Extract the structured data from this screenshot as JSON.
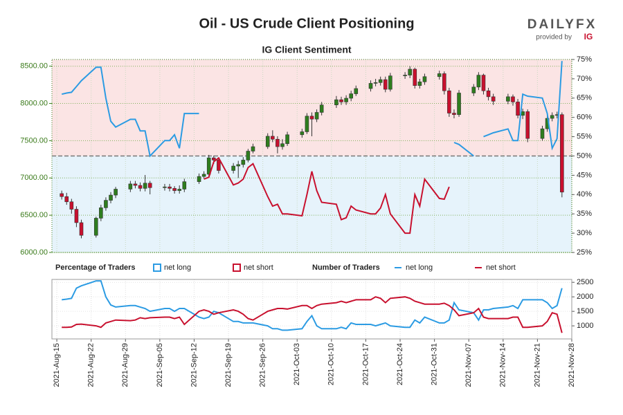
{
  "title": "Oil - US Crude Client Positioning",
  "logo": {
    "brand": "DAILYFX",
    "tagline": "provided by",
    "provider": "IG"
  },
  "chart_data": [
    {
      "type": "candlestick",
      "title": "IG Client Sentiment",
      "legend_title": "Percentage of Traders",
      "up_color": "#2e7d1e",
      "down_color": "#c8102e",
      "xlim": [
        "2021-08-14",
        "2021-11-28"
      ],
      "ylim": [
        6000,
        8590
      ],
      "yticks": [
        {
          "value": 6000,
          "label": "6000.00"
        },
        {
          "value": 6500,
          "label": "6500.00"
        },
        {
          "value": 7000,
          "label": "7000.00"
        },
        {
          "value": 7500,
          "label": "7500.00"
        },
        {
          "value": 8000,
          "label": "8000.00"
        },
        {
          "value": 8500,
          "label": "8500.00"
        }
      ],
      "y2lim": [
        25,
        75
      ],
      "y2ticks": [
        {
          "value": 25,
          "label": "25%"
        },
        {
          "value": 30,
          "label": "30%"
        },
        {
          "value": 35,
          "label": "35%"
        },
        {
          "value": 40,
          "label": "40%"
        },
        {
          "value": 45,
          "label": "45%"
        },
        {
          "value": 50,
          "label": "50%"
        },
        {
          "value": 55,
          "label": "55%"
        },
        {
          "value": 60,
          "label": "60%"
        },
        {
          "value": 65,
          "label": "65%"
        },
        {
          "value": 70,
          "label": "70%"
        },
        {
          "value": 75,
          "label": "75%"
        }
      ],
      "x": [
        "2021-08-16",
        "2021-08-17",
        "2021-08-18",
        "2021-08-19",
        "2021-08-20",
        "2021-08-23",
        "2021-08-24",
        "2021-08-25",
        "2021-08-26",
        "2021-08-27",
        "2021-08-30",
        "2021-08-31",
        "2021-09-01",
        "2021-09-02",
        "2021-09-03",
        "2021-09-06",
        "2021-09-07",
        "2021-09-08",
        "2021-09-09",
        "2021-09-10",
        "2021-09-13",
        "2021-09-14",
        "2021-09-15",
        "2021-09-16",
        "2021-09-17",
        "2021-09-20",
        "2021-09-21",
        "2021-09-22",
        "2021-09-23",
        "2021-09-24",
        "2021-09-27",
        "2021-09-28",
        "2021-09-29",
        "2021-09-30",
        "2021-10-01",
        "2021-10-04",
        "2021-10-05",
        "2021-10-06",
        "2021-10-07",
        "2021-10-08",
        "2021-10-11",
        "2021-10-12",
        "2021-10-13",
        "2021-10-14",
        "2021-10-15",
        "2021-10-18",
        "2021-10-19",
        "2021-10-20",
        "2021-10-21",
        "2021-10-22",
        "2021-10-25",
        "2021-10-26",
        "2021-10-27",
        "2021-10-28",
        "2021-10-29",
        "2021-11-01",
        "2021-11-02",
        "2021-11-03",
        "2021-11-04",
        "2021-11-05",
        "2021-11-08",
        "2021-11-09",
        "2021-11-10",
        "2021-11-11",
        "2021-11-12",
        "2021-11-15",
        "2021-11-16",
        "2021-11-17",
        "2021-11-18",
        "2021-11-19",
        "2021-11-22",
        "2021-11-23",
        "2021-11-24",
        "2021-11-25",
        "2021-11-26"
      ],
      "open": [
        6790,
        6750,
        6680,
        6580,
        6400,
        6230,
        6460,
        6600,
        6700,
        6770,
        6850,
        6920,
        6900,
        6860,
        6930,
        6870,
        6880,
        6860,
        6830,
        6850,
        6950,
        7020,
        7050,
        7270,
        7240,
        7100,
        7160,
        7180,
        7240,
        7360,
        7420,
        7560,
        7520,
        7420,
        7460,
        7580,
        7620,
        7830,
        7790,
        7880,
        7980,
        8050,
        8020,
        8070,
        8130,
        8200,
        8270,
        8280,
        8320,
        8190,
        8370,
        8380,
        8460,
        8240,
        8290,
        8360,
        8400,
        8170,
        7870,
        7850,
        8140,
        8220,
        8380,
        8170,
        8090,
        8030,
        8090,
        8020,
        7840,
        7890,
        7530,
        7660,
        7800,
        7840,
        7850
      ],
      "high": [
        6830,
        6800,
        6720,
        6620,
        6440,
        6480,
        6640,
        6740,
        6810,
        6880,
        6960,
        6960,
        6940,
        7040,
        6960,
        6920,
        6920,
        6890,
        6900,
        6990,
        7060,
        7090,
        7310,
        7300,
        7270,
        7200,
        7230,
        7280,
        7390,
        7460,
        7600,
        7640,
        7560,
        7520,
        7620,
        7660,
        7870,
        7880,
        7920,
        8020,
        8100,
        8090,
        8110,
        8170,
        8240,
        8310,
        8330,
        8360,
        8360,
        8410,
        8420,
        8500,
        8480,
        8330,
        8400,
        8440,
        8430,
        8210,
        7920,
        8180,
        8260,
        8420,
        8400,
        8210,
        8130,
        8130,
        8120,
        8060,
        7930,
        7920,
        7700,
        7840,
        7880,
        7890,
        7880
      ],
      "low": [
        6710,
        6640,
        6520,
        6340,
        6190,
        6200,
        6420,
        6560,
        6660,
        6730,
        6810,
        6860,
        6820,
        6820,
        6780,
        6830,
        6820,
        6790,
        6790,
        6810,
        6920,
        6990,
        7020,
        7190,
        7060,
        7060,
        7000,
        7140,
        7210,
        7330,
        7390,
        7480,
        7330,
        7380,
        7430,
        7540,
        7590,
        7560,
        7750,
        7840,
        7940,
        7980,
        7980,
        8030,
        8100,
        8160,
        8230,
        8240,
        8150,
        8160,
        8330,
        8340,
        8200,
        8200,
        8250,
        8320,
        8120,
        7820,
        7800,
        7820,
        8100,
        8180,
        8120,
        8040,
        7980,
        7990,
        7970,
        7800,
        7790,
        7480,
        7500,
        7620,
        7760,
        7800,
        6740
      ],
      "close": [
        6750,
        6680,
        6580,
        6400,
        6230,
        6460,
        6600,
        6700,
        6770,
        6850,
        6920,
        6900,
        6860,
        6930,
        6870,
        6880,
        6860,
        6830,
        6850,
        6950,
        7020,
        7050,
        7270,
        7240,
        7100,
        7160,
        7180,
        7240,
        7360,
        7420,
        7560,
        7520,
        7420,
        7460,
        7580,
        7620,
        7830,
        7790,
        7880,
        7980,
        8050,
        8020,
        8070,
        8130,
        8200,
        8270,
        8280,
        8320,
        8190,
        8370,
        8380,
        8460,
        8240,
        8290,
        8360,
        8400,
        8170,
        7870,
        7850,
        8140,
        8220,
        8380,
        8170,
        8090,
        8030,
        8090,
        8020,
        7840,
        7890,
        7530,
        7660,
        7800,
        7840,
        7850,
        6810
      ],
      "series": [
        {
          "name": "net long",
          "color": "#2b9be3",
          "axis": "y2",
          "values": [
            66,
            66.3,
            66.5,
            68,
            69.5,
            73,
            73,
            65,
            59,
            57.5,
            59.5,
            59.5,
            56.5,
            56.5,
            50,
            54,
            54,
            55.5,
            52,
            61,
            61,
            null,
            null,
            null,
            null,
            null,
            null,
            null,
            null,
            null,
            null,
            null,
            null,
            null,
            null,
            null,
            null,
            null,
            null,
            null,
            null,
            null,
            null,
            null,
            null,
            null,
            null,
            null,
            null,
            null,
            null,
            null,
            null,
            null,
            null,
            null,
            null,
            null,
            53.5,
            53,
            50,
            null,
            55,
            55.5,
            56,
            57,
            54,
            54,
            66,
            65.5,
            65,
            61,
            52,
            54.5,
            74.6
          ]
        },
        {
          "name": "net short",
          "color": "#c8102e",
          "axis": "y2",
          "values": [
            null,
            null,
            null,
            null,
            null,
            null,
            null,
            null,
            null,
            null,
            null,
            null,
            null,
            null,
            null,
            null,
            null,
            null,
            null,
            null,
            null,
            44,
            44.5,
            48.5,
            49.5,
            42.5,
            43,
            44,
            47,
            48,
            39.5,
            37,
            37.5,
            35,
            35,
            34.5,
            40,
            46,
            41,
            38,
            37.5,
            33.5,
            34,
            37,
            36,
            35,
            35,
            36.5,
            40,
            35,
            30,
            30,
            40,
            37,
            44,
            39,
            38.8,
            42,
            null,
            null,
            null,
            43.5,
            null,
            null,
            null,
            null,
            null,
            null,
            null,
            null,
            null,
            null,
            null,
            null,
            null
          ]
        }
      ]
    },
    {
      "type": "line",
      "legend_title": "Number of Traders",
      "xlim": [
        "2021-08-14",
        "2021-11-28"
      ],
      "xticks": [
        {
          "value": "2021-08-15",
          "label": "2021-Aug-15"
        },
        {
          "value": "2021-08-22",
          "label": "2021-Aug-22"
        },
        {
          "value": "2021-08-29",
          "label": "2021-Aug-29"
        },
        {
          "value": "2021-09-05",
          "label": "2021-Sep-05"
        },
        {
          "value": "2021-09-12",
          "label": "2021-Sep-12"
        },
        {
          "value": "2021-09-19",
          "label": "2021-Sep-19"
        },
        {
          "value": "2021-09-26",
          "label": "2021-Sep-26"
        },
        {
          "value": "2021-10-03",
          "label": "2021-Oct-03"
        },
        {
          "value": "2021-10-10",
          "label": "2021-Oct-10"
        },
        {
          "value": "2021-10-17",
          "label": "2021-Oct-17"
        },
        {
          "value": "2021-10-24",
          "label": "2021-Oct-24"
        },
        {
          "value": "2021-10-31",
          "label": "2021-Oct-31"
        },
        {
          "value": "2021-11-07",
          "label": "2021-Nov-07"
        },
        {
          "value": "2021-11-14",
          "label": "2021-Nov-14"
        },
        {
          "value": "2021-11-21",
          "label": "2021-Nov-21"
        },
        {
          "value": "2021-11-28",
          "label": "2021-Nov-28"
        }
      ],
      "ylim": [
        550,
        2600
      ],
      "yticks": [
        1000,
        1500,
        2000,
        2500
      ],
      "x": [
        "2021-08-16",
        "2021-08-17",
        "2021-08-18",
        "2021-08-19",
        "2021-08-20",
        "2021-08-23",
        "2021-08-24",
        "2021-08-25",
        "2021-08-26",
        "2021-08-27",
        "2021-08-30",
        "2021-08-31",
        "2021-09-01",
        "2021-09-02",
        "2021-09-03",
        "2021-09-06",
        "2021-09-07",
        "2021-09-08",
        "2021-09-09",
        "2021-09-10",
        "2021-09-13",
        "2021-09-14",
        "2021-09-15",
        "2021-09-16",
        "2021-09-17",
        "2021-09-20",
        "2021-09-21",
        "2021-09-22",
        "2021-09-23",
        "2021-09-24",
        "2021-09-27",
        "2021-09-28",
        "2021-09-29",
        "2021-09-30",
        "2021-10-01",
        "2021-10-04",
        "2021-10-05",
        "2021-10-06",
        "2021-10-07",
        "2021-10-08",
        "2021-10-11",
        "2021-10-12",
        "2021-10-13",
        "2021-10-14",
        "2021-10-15",
        "2021-10-18",
        "2021-10-19",
        "2021-10-20",
        "2021-10-21",
        "2021-10-22",
        "2021-10-25",
        "2021-10-26",
        "2021-10-27",
        "2021-10-28",
        "2021-10-29",
        "2021-11-01",
        "2021-11-02",
        "2021-11-03",
        "2021-11-04",
        "2021-11-05",
        "2021-11-08",
        "2021-11-09",
        "2021-11-10",
        "2021-11-11",
        "2021-11-12",
        "2021-11-15",
        "2021-11-16",
        "2021-11-17",
        "2021-11-18",
        "2021-11-19",
        "2021-11-22",
        "2021-11-23",
        "2021-11-24",
        "2021-11-25",
        "2021-11-26"
      ],
      "series": [
        {
          "name": "net long",
          "color": "#2b9be3",
          "values": [
            1900,
            1920,
            1950,
            2300,
            2380,
            2550,
            2550,
            2000,
            1720,
            1650,
            1700,
            1700,
            1650,
            1600,
            1500,
            1600,
            1600,
            1500,
            1600,
            1600,
            1300,
            1250,
            1300,
            1500,
            1450,
            1150,
            1150,
            1100,
            1100,
            1100,
            1000,
            900,
            900,
            850,
            850,
            900,
            1150,
            1350,
            1000,
            900,
            900,
            950,
            900,
            1100,
            1050,
            1050,
            1000,
            1050,
            1100,
            1000,
            950,
            950,
            1200,
            1100,
            1300,
            1100,
            1100,
            1200,
            1800,
            1550,
            1450,
            1200,
            1550,
            1550,
            1600,
            1650,
            1700,
            1600,
            1900,
            1900,
            1900,
            1800,
            1600,
            1700,
            2300
          ]
        },
        {
          "name": "net short",
          "color": "#c8102e",
          "values": [
            950,
            950,
            960,
            1050,
            1060,
            1000,
            950,
            1100,
            1150,
            1200,
            1180,
            1200,
            1280,
            1250,
            1280,
            1300,
            1300,
            1250,
            1300,
            1050,
            1500,
            1550,
            1500,
            1400,
            1450,
            1550,
            1500,
            1400,
            1250,
            1200,
            1500,
            1550,
            1600,
            1600,
            1580,
            1700,
            1700,
            1600,
            1700,
            1750,
            1800,
            1850,
            1800,
            1850,
            1900,
            1900,
            2000,
            1950,
            1800,
            1950,
            2000,
            1950,
            1850,
            1800,
            1750,
            1750,
            1780,
            1700,
            1550,
            1350,
            1450,
            1600,
            1300,
            1250,
            1250,
            1250,
            1300,
            1300,
            950,
            950,
            1000,
            1150,
            1450,
            1400,
            760
          ]
        }
      ]
    }
  ]
}
